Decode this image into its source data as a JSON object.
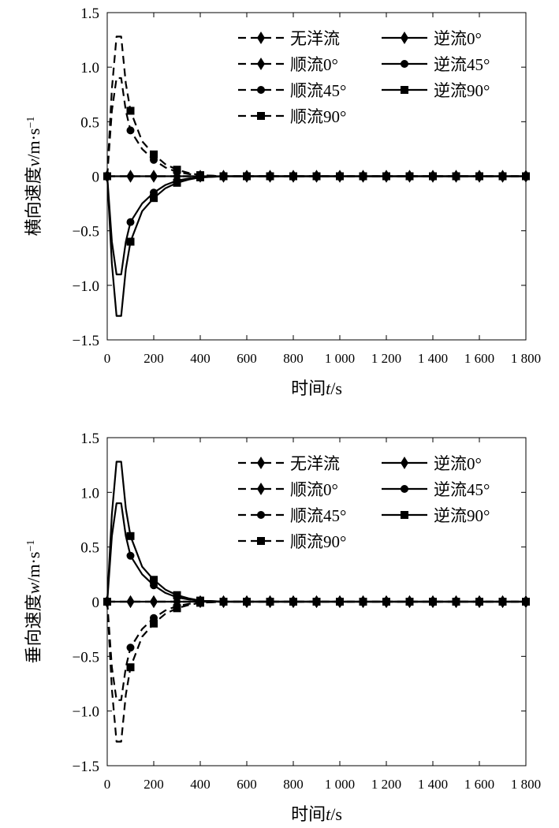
{
  "chart_data": [
    {
      "type": "line",
      "xlabel_main": "时间",
      "xlabel_var": "t",
      "xlabel_unit": "/s",
      "ylabel_main": "横向速度",
      "ylabel_var": "v",
      "ylabel_unit": "/m·s",
      "ylabel_exp": "−1",
      "xlim": [
        0,
        1800
      ],
      "ylim": [
        -1.5,
        1.5
      ],
      "grid": false,
      "legend_position": "top-right",
      "x_ticks": [
        0,
        200,
        400,
        600,
        800,
        1000,
        1200,
        1400,
        1600,
        1800
      ],
      "x_tick_labels": [
        "0",
        "200",
        "400",
        "600",
        "800",
        "1 000",
        "1 200",
        "1 400",
        "1 600",
        "1 800"
      ],
      "y_ticks": [
        1.5,
        1.0,
        0.5,
        0,
        -0.5,
        -1.0,
        -1.5
      ],
      "y_tick_labels": [
        "1.5",
        "1.0",
        "0.5",
        "0",
        "−0.5",
        "−1.0",
        "−1.5"
      ],
      "series": [
        {
          "name": "无洋流",
          "style": "dashed",
          "marker": "diamond",
          "x": [
            0,
            100,
            200,
            300,
            400,
            500,
            600,
            700,
            800,
            900,
            1000,
            1100,
            1200,
            1300,
            1400,
            1500,
            1600,
            1700,
            1800
          ],
          "y": [
            0,
            0,
            0,
            0,
            0,
            0,
            0,
            0,
            0,
            0,
            0,
            0,
            0,
            0,
            0,
            0,
            0,
            0,
            0
          ]
        },
        {
          "name": "顺流0°",
          "style": "dashed",
          "marker": "diamond",
          "x": [
            0,
            100,
            200,
            300,
            400,
            500,
            600,
            700,
            800,
            900,
            1000,
            1100,
            1200,
            1300,
            1400,
            1500,
            1600,
            1700,
            1800
          ],
          "y": [
            0,
            0,
            0,
            0,
            0,
            0,
            0,
            0,
            0,
            0,
            0,
            0,
            0,
            0,
            0,
            0,
            0,
            0,
            0
          ]
        },
        {
          "name": "顺流45°",
          "style": "dashed",
          "marker": "circle",
          "x": [
            0,
            20,
            40,
            60,
            80,
            100,
            150,
            200,
            250,
            300,
            350,
            400,
            500,
            600,
            700,
            800,
            900,
            1000,
            1100,
            1200,
            1300,
            1400,
            1500,
            1600,
            1700,
            1800
          ],
          "y": [
            0,
            0.6,
            0.9,
            0.9,
            0.6,
            0.42,
            0.25,
            0.15,
            0.08,
            0.04,
            0.02,
            0.01,
            0,
            0,
            0,
            0,
            0,
            0,
            0,
            0,
            0,
            0,
            0,
            0,
            0,
            0
          ]
        },
        {
          "name": "顺流90°",
          "style": "dashed",
          "marker": "square",
          "x": [
            0,
            20,
            40,
            60,
            80,
            100,
            150,
            200,
            250,
            300,
            350,
            400,
            500,
            600,
            700,
            800,
            900,
            1000,
            1100,
            1200,
            1300,
            1400,
            1500,
            1600,
            1700,
            1800
          ],
          "y": [
            0,
            0.8,
            1.28,
            1.28,
            0.85,
            0.6,
            0.32,
            0.2,
            0.11,
            0.06,
            0.03,
            0.01,
            0,
            0,
            0,
            0,
            0,
            0,
            0,
            0,
            0,
            0,
            0,
            0,
            0,
            0
          ]
        },
        {
          "name": "逆流0°",
          "style": "solid",
          "marker": "diamond",
          "x": [
            0,
            100,
            200,
            300,
            400,
            500,
            600,
            700,
            800,
            900,
            1000,
            1100,
            1200,
            1300,
            1400,
            1500,
            1600,
            1700,
            1800
          ],
          "y": [
            0,
            0,
            0,
            0,
            0,
            0,
            0,
            0,
            0,
            0,
            0,
            0,
            0,
            0,
            0,
            0,
            0,
            0,
            0
          ]
        },
        {
          "name": "逆流45°",
          "style": "solid",
          "marker": "circle",
          "x": [
            0,
            20,
            40,
            60,
            80,
            100,
            150,
            200,
            250,
            300,
            350,
            400,
            500,
            600,
            700,
            800,
            900,
            1000,
            1100,
            1200,
            1300,
            1400,
            1500,
            1600,
            1700,
            1800
          ],
          "y": [
            0,
            -0.6,
            -0.9,
            -0.9,
            -0.6,
            -0.42,
            -0.25,
            -0.15,
            -0.08,
            -0.04,
            -0.02,
            -0.01,
            0,
            0,
            0,
            0,
            0,
            0,
            0,
            0,
            0,
            0,
            0,
            0,
            0,
            0
          ]
        },
        {
          "name": "逆流90°",
          "style": "solid",
          "marker": "square",
          "x": [
            0,
            20,
            40,
            60,
            80,
            100,
            150,
            200,
            250,
            300,
            350,
            400,
            500,
            600,
            700,
            800,
            900,
            1000,
            1100,
            1200,
            1300,
            1400,
            1500,
            1600,
            1700,
            1800
          ],
          "y": [
            0,
            -0.8,
            -1.28,
            -1.28,
            -0.85,
            -0.6,
            -0.32,
            -0.2,
            -0.11,
            -0.06,
            -0.03,
            -0.01,
            0,
            0,
            0,
            0,
            0,
            0,
            0,
            0,
            0,
            0,
            0,
            0,
            0,
            0
          ]
        }
      ]
    },
    {
      "type": "line",
      "xlabel_main": "时间",
      "xlabel_var": "t",
      "xlabel_unit": "/s",
      "ylabel_main": "垂向速度",
      "ylabel_var": "w",
      "ylabel_unit": "/m·s",
      "ylabel_exp": "−1",
      "xlim": [
        0,
        1800
      ],
      "ylim": [
        -1.5,
        1.5
      ],
      "grid": false,
      "legend_position": "top-right",
      "x_ticks": [
        0,
        200,
        400,
        600,
        800,
        1000,
        1200,
        1400,
        1600,
        1800
      ],
      "x_tick_labels": [
        "0",
        "200",
        "400",
        "600",
        "800",
        "1 000",
        "1 200",
        "1 400",
        "1 600",
        "1 800"
      ],
      "y_ticks": [
        1.5,
        1.0,
        0.5,
        0,
        -0.5,
        -1.0,
        -1.5
      ],
      "y_tick_labels": [
        "1.5",
        "1.0",
        "0.5",
        "0",
        "−0.5",
        "−1.0",
        "−1.5"
      ],
      "series": [
        {
          "name": "无洋流",
          "style": "dashed",
          "marker": "diamond",
          "x": [
            0,
            100,
            200,
            300,
            400,
            500,
            600,
            700,
            800,
            900,
            1000,
            1100,
            1200,
            1300,
            1400,
            1500,
            1600,
            1700,
            1800
          ],
          "y": [
            0,
            0,
            0,
            0,
            0,
            0,
            0,
            0,
            0,
            0,
            0,
            0,
            0,
            0,
            0,
            0,
            0,
            0,
            0
          ]
        },
        {
          "name": "顺流0°",
          "style": "dashed",
          "marker": "diamond",
          "x": [
            0,
            100,
            200,
            300,
            400,
            500,
            600,
            700,
            800,
            900,
            1000,
            1100,
            1200,
            1300,
            1400,
            1500,
            1600,
            1700,
            1800
          ],
          "y": [
            0,
            0,
            0,
            0,
            0,
            0,
            0,
            0,
            0,
            0,
            0,
            0,
            0,
            0,
            0,
            0,
            0,
            0,
            0
          ]
        },
        {
          "name": "顺流45°",
          "style": "dashed",
          "marker": "circle",
          "x": [
            0,
            20,
            40,
            60,
            80,
            100,
            150,
            200,
            250,
            300,
            350,
            400,
            500,
            600,
            700,
            800,
            900,
            1000,
            1100,
            1200,
            1300,
            1400,
            1500,
            1600,
            1700,
            1800
          ],
          "y": [
            0,
            -0.6,
            -0.9,
            -0.9,
            -0.6,
            -0.42,
            -0.25,
            -0.15,
            -0.08,
            -0.04,
            -0.02,
            -0.01,
            0,
            0,
            0,
            0,
            0,
            0,
            0,
            0,
            0,
            0,
            0,
            0,
            0,
            0
          ]
        },
        {
          "name": "顺流90°",
          "style": "dashed",
          "marker": "square",
          "x": [
            0,
            20,
            40,
            60,
            80,
            100,
            150,
            200,
            250,
            300,
            350,
            400,
            500,
            600,
            700,
            800,
            900,
            1000,
            1100,
            1200,
            1300,
            1400,
            1500,
            1600,
            1700,
            1800
          ],
          "y": [
            0,
            -0.8,
            -1.28,
            -1.28,
            -0.85,
            -0.6,
            -0.32,
            -0.2,
            -0.11,
            -0.06,
            -0.03,
            -0.01,
            0,
            0,
            0,
            0,
            0,
            0,
            0,
            0,
            0,
            0,
            0,
            0,
            0,
            0
          ]
        },
        {
          "name": "逆流0°",
          "style": "solid",
          "marker": "diamond",
          "x": [
            0,
            100,
            200,
            300,
            400,
            500,
            600,
            700,
            800,
            900,
            1000,
            1100,
            1200,
            1300,
            1400,
            1500,
            1600,
            1700,
            1800
          ],
          "y": [
            0,
            0,
            0,
            0,
            0,
            0,
            0,
            0,
            0,
            0,
            0,
            0,
            0,
            0,
            0,
            0,
            0,
            0,
            0
          ]
        },
        {
          "name": "逆流45°",
          "style": "solid",
          "marker": "circle",
          "x": [
            0,
            20,
            40,
            60,
            80,
            100,
            150,
            200,
            250,
            300,
            350,
            400,
            500,
            600,
            700,
            800,
            900,
            1000,
            1100,
            1200,
            1300,
            1400,
            1500,
            1600,
            1700,
            1800
          ],
          "y": [
            0,
            0.6,
            0.9,
            0.9,
            0.6,
            0.42,
            0.25,
            0.15,
            0.08,
            0.04,
            0.02,
            0.01,
            0,
            0,
            0,
            0,
            0,
            0,
            0,
            0,
            0,
            0,
            0,
            0,
            0,
            0
          ]
        },
        {
          "name": "逆流90°",
          "style": "solid",
          "marker": "square",
          "x": [
            0,
            20,
            40,
            60,
            80,
            100,
            150,
            200,
            250,
            300,
            350,
            400,
            500,
            600,
            700,
            800,
            900,
            1000,
            1100,
            1200,
            1300,
            1400,
            1500,
            1600,
            1700,
            1800
          ],
          "y": [
            0,
            0.8,
            1.28,
            1.28,
            0.85,
            0.6,
            0.32,
            0.2,
            0.11,
            0.06,
            0.03,
            0.01,
            0,
            0,
            0,
            0,
            0,
            0,
            0,
            0,
            0,
            0,
            0,
            0,
            0,
            0
          ]
        }
      ]
    }
  ]
}
